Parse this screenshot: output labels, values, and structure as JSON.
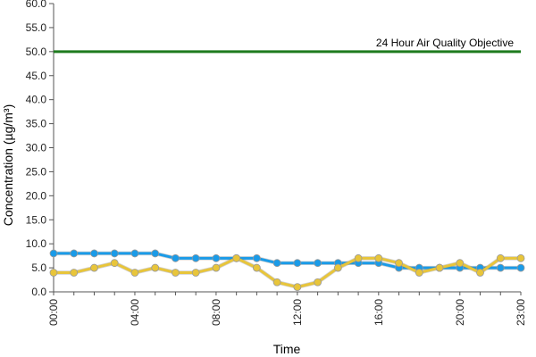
{
  "chart_data": {
    "type": "line",
    "xlabel": "Time",
    "ylabel": "Concentration (µg/m³)",
    "ylim": [
      0,
      60
    ],
    "yticks": [
      "0.0",
      "5.0",
      "10.0",
      "15.0",
      "20.0",
      "25.0",
      "30.0",
      "35.0",
      "40.0",
      "45.0",
      "50.0",
      "55.0",
      "60.0"
    ],
    "x": [
      "00:00",
      "01:00",
      "02:00",
      "03:00",
      "04:00",
      "05:00",
      "06:00",
      "07:00",
      "08:00",
      "09:00",
      "10:00",
      "11:00",
      "12:00",
      "13:00",
      "14:00",
      "15:00",
      "16:00",
      "17:00",
      "18:00",
      "19:00",
      "20:00",
      "21:00",
      "22:00",
      "23:00"
    ],
    "xticks": [
      "00:00",
      "04:00",
      "08:00",
      "12:00",
      "16:00",
      "20:00",
      "23:00"
    ],
    "series": [
      {
        "color": "#1a9be8",
        "values": [
          8,
          8,
          8,
          8,
          8,
          8,
          7,
          7,
          7,
          7,
          7,
          6,
          6,
          6,
          6,
          6,
          6,
          5,
          5,
          5,
          5,
          5,
          5,
          5
        ]
      },
      {
        "color": "#e8c53a",
        "values": [
          4,
          4,
          5,
          6,
          4,
          5,
          4,
          4,
          5,
          7,
          5,
          2,
          1,
          2,
          5,
          7,
          7,
          6,
          4,
          5,
          6,
          4,
          7,
          7
        ]
      }
    ],
    "reference_line": {
      "value": 50,
      "label": "24 Hour Air Quality Objective",
      "color": "#1e7b1e"
    },
    "grid": false,
    "legend": "none"
  }
}
